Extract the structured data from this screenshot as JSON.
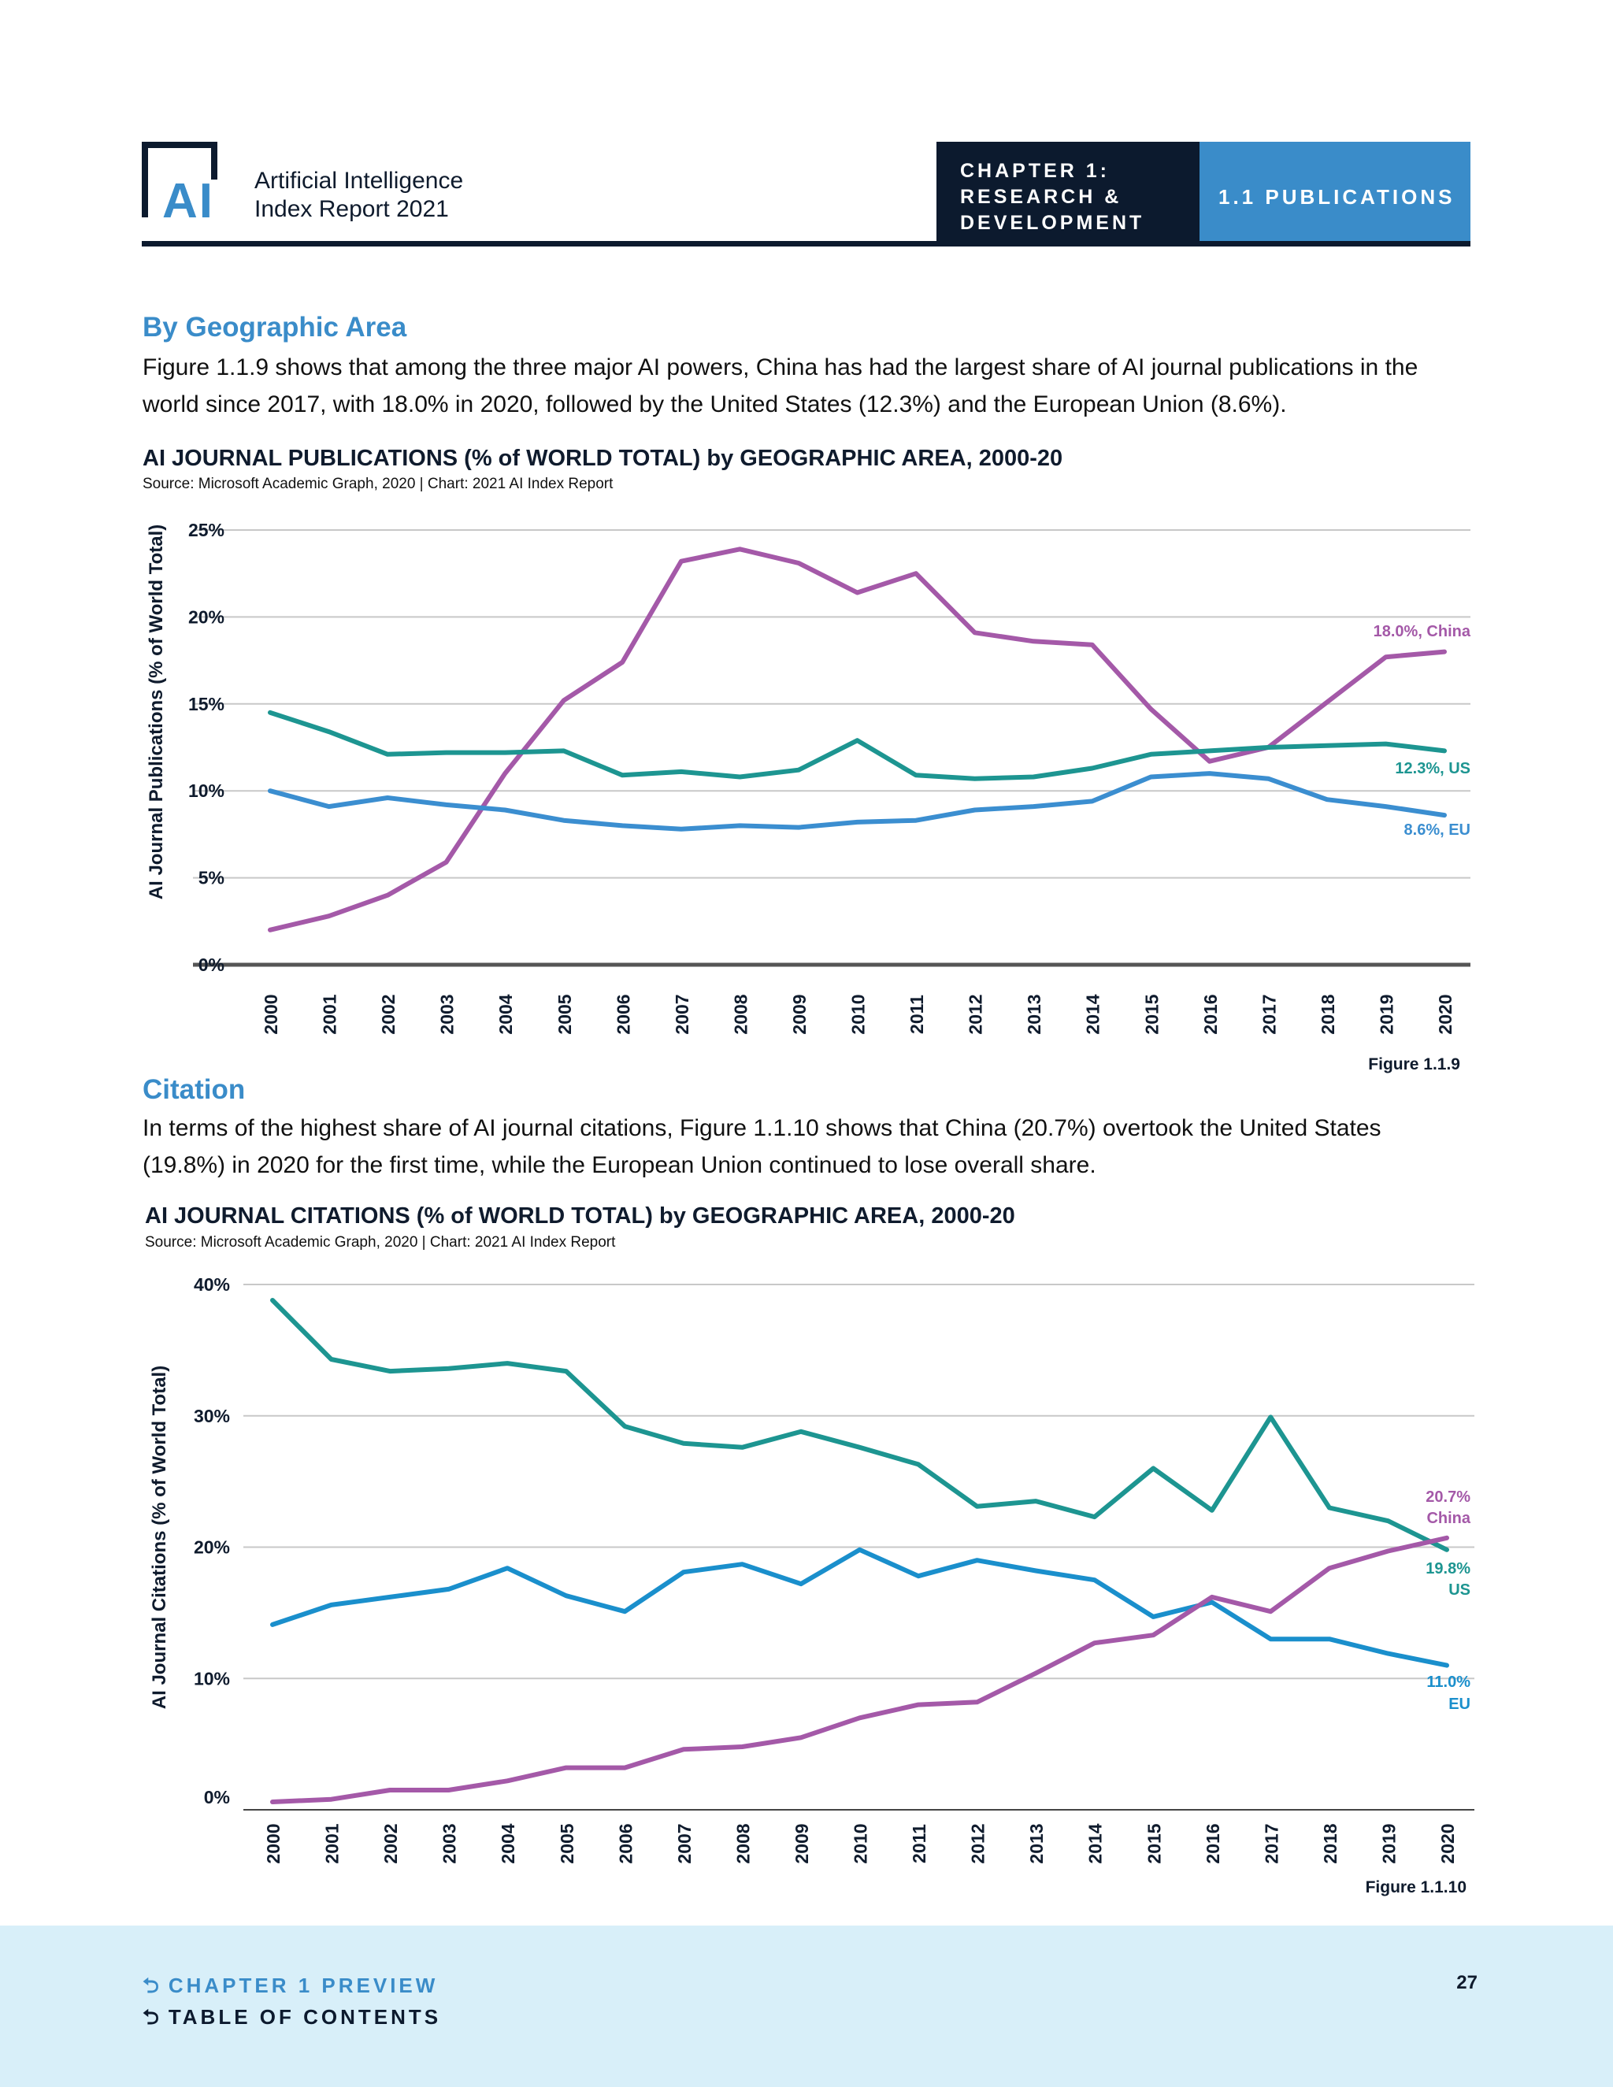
{
  "header": {
    "brand_line1": "Artificial Intelligence",
    "brand_line2": "Index Report 2021",
    "logo_text": "AI",
    "chapter_line1": "CHAPTER 1:",
    "chapter_line2": "RESEARCH &",
    "chapter_line3": "DEVELOPMENT",
    "section": "1.1 PUBLICATIONS"
  },
  "section1": {
    "heading": "By Geographic Area",
    "paragraph_line1": "Figure 1.1.9 shows that among the three major AI powers, China has had the largest share of AI journal publications in the",
    "paragraph_line2": "world since 2017, with 18.0% in 2020, followed by the United States (12.3%) and the European Union (8.6%)."
  },
  "section2": {
    "heading": "Citation",
    "paragraph_line1": "In terms of the highest share of AI journal citations, Figure 1.1.10 shows that China (20.7%) overtook the United States",
    "paragraph_line2": "(19.8%) in 2020 for the first time, while the European Union continued to lose overall share."
  },
  "colors": {
    "china": "#a459a8",
    "us": "#1d9591",
    "eu": "#3b8ed0",
    "eu_citations": "#1a8fcc",
    "accent": "#3a8cc9",
    "navy": "#0c1a2e"
  },
  "chart_data": [
    {
      "type": "line",
      "title": "AI JOURNAL PUBLICATIONS (% of WORLD TOTAL) by GEOGRAPHIC AREA, 2000-20",
      "source": "Source: Microsoft Academic Graph, 2020 | Chart: 2021 AI Index Report",
      "figure_label": "Figure 1.1.9",
      "xlabel": "",
      "ylabel": "AI Journal Publications (% of World Total)",
      "ylim": [
        0,
        25
      ],
      "yticks": [
        "0%",
        "5%",
        "10%",
        "15%",
        "20%",
        "25%"
      ],
      "grid": true,
      "x": [
        "2000",
        "2001",
        "2002",
        "2003",
        "2004",
        "2005",
        "2006",
        "2007",
        "2008",
        "2009",
        "2010",
        "2011",
        "2012",
        "2013",
        "2014",
        "2015",
        "2016",
        "2017",
        "2018",
        "2019",
        "2020"
      ],
      "series": [
        {
          "name": "China",
          "color": "#a459a8",
          "end_label": [
            "18.0%, China"
          ],
          "values": [
            2.0,
            2.8,
            4.0,
            5.9,
            11.0,
            15.2,
            17.4,
            23.2,
            23.9,
            23.1,
            21.4,
            22.5,
            19.1,
            18.6,
            18.4,
            14.7,
            11.7,
            12.5,
            15.1,
            17.7,
            18.0
          ]
        },
        {
          "name": "US",
          "color": "#1d9591",
          "end_label": [
            "12.3%, US"
          ],
          "values": [
            14.5,
            13.4,
            12.1,
            12.2,
            12.2,
            12.3,
            10.9,
            11.1,
            10.8,
            11.2,
            12.9,
            10.9,
            10.7,
            10.8,
            11.3,
            12.1,
            12.3,
            12.5,
            12.6,
            12.7,
            12.3
          ]
        },
        {
          "name": "EU",
          "color": "#3b8ed0",
          "end_label": [
            "8.6%, EU"
          ],
          "values": [
            10.0,
            9.1,
            9.6,
            9.2,
            8.9,
            8.3,
            8.0,
            7.8,
            8.0,
            7.9,
            8.2,
            8.3,
            8.9,
            9.1,
            9.4,
            10.8,
            11.0,
            10.7,
            9.5,
            9.1,
            8.6
          ]
        }
      ]
    },
    {
      "type": "line",
      "title": "AI JOURNAL CITATIONS (% of WORLD TOTAL) by GEOGRAPHIC AREA, 2000-20",
      "source": "Source: Microsoft Academic Graph, 2020 | Chart: 2021 AI Index Report",
      "figure_label": "Figure 1.1.10",
      "xlabel": "",
      "ylabel": "AI Journal Citations (% of World Total)",
      "ylim": [
        0,
        40
      ],
      "yticks": [
        "0%",
        "10%",
        "20%",
        "30%",
        "40%"
      ],
      "grid": true,
      "x": [
        "2000",
        "2001",
        "2002",
        "2003",
        "2004",
        "2005",
        "2006",
        "2007",
        "2008",
        "2009",
        "2010",
        "2011",
        "2012",
        "2013",
        "2014",
        "2015",
        "2016",
        "2017",
        "2018",
        "2019",
        "2020"
      ],
      "series": [
        {
          "name": "US",
          "color": "#1d9591",
          "end_label": [
            "19.8%",
            "US"
          ],
          "values": [
            38.8,
            34.3,
            33.4,
            33.6,
            34.0,
            33.4,
            29.2,
            27.9,
            27.6,
            28.8,
            27.6,
            26.3,
            23.1,
            23.5,
            22.3,
            26.0,
            22.8,
            29.9,
            23.0,
            22.0,
            19.8
          ]
        },
        {
          "name": "EU",
          "color": "#1a8fcc",
          "end_label": [
            "11.0%",
            "EU"
          ],
          "values": [
            14.1,
            15.6,
            16.2,
            16.8,
            18.4,
            16.3,
            15.1,
            18.1,
            18.7,
            17.2,
            19.8,
            17.8,
            19.0,
            18.2,
            17.5,
            14.7,
            15.8,
            13.0,
            13.0,
            11.9,
            11.0
          ]
        },
        {
          "name": "China",
          "color": "#a459a8",
          "end_label": [
            "20.7%",
            "China"
          ],
          "values": [
            0.6,
            0.8,
            1.5,
            1.5,
            2.2,
            3.2,
            3.2,
            4.6,
            4.8,
            5.5,
            7.0,
            8.0,
            8.2,
            10.4,
            12.7,
            13.3,
            16.2,
            15.1,
            18.4,
            19.7,
            20.7
          ]
        }
      ]
    }
  ],
  "footer": {
    "link1": "CHAPTER 1 PREVIEW",
    "link2": "TABLE OF CONTENTS",
    "arrow": "⮌",
    "page_number": "27"
  }
}
